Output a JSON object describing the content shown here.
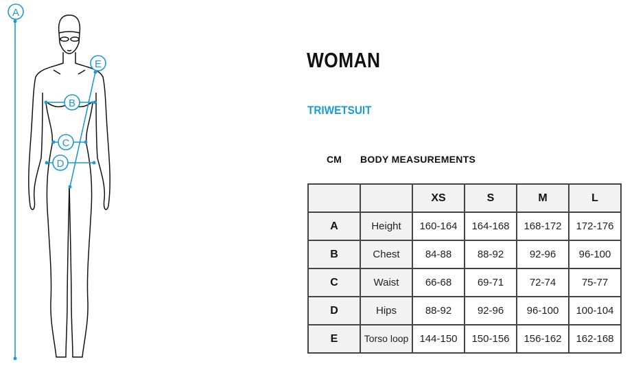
{
  "title": "WOMAN",
  "subtitle": "TRIWETSUIT",
  "unit": "CM",
  "measurements_heading": "BODY MEASUREMENTS",
  "accent_color": "#1a9ad6",
  "figure_labels": [
    "A",
    "B",
    "C",
    "D",
    "E"
  ],
  "table": {
    "sizes": [
      "XS",
      "S",
      "M",
      "L"
    ],
    "rows": [
      {
        "key": "A",
        "name": "Height",
        "values": [
          "160-164",
          "164-168",
          "168-172",
          "172-176"
        ]
      },
      {
        "key": "B",
        "name": "Chest",
        "values": [
          "84-88",
          "88-92",
          "92-96",
          "96-100"
        ]
      },
      {
        "key": "C",
        "name": "Waist",
        "values": [
          "66-68",
          "69-71",
          "72-74",
          "75-77"
        ]
      },
      {
        "key": "D",
        "name": "Hips",
        "values": [
          "88-92",
          "92-96",
          "96-100",
          "100-104"
        ]
      },
      {
        "key": "E",
        "name": "Torso loop",
        "values": [
          "144-150",
          "150-156",
          "156-162",
          "162-168"
        ]
      }
    ]
  }
}
